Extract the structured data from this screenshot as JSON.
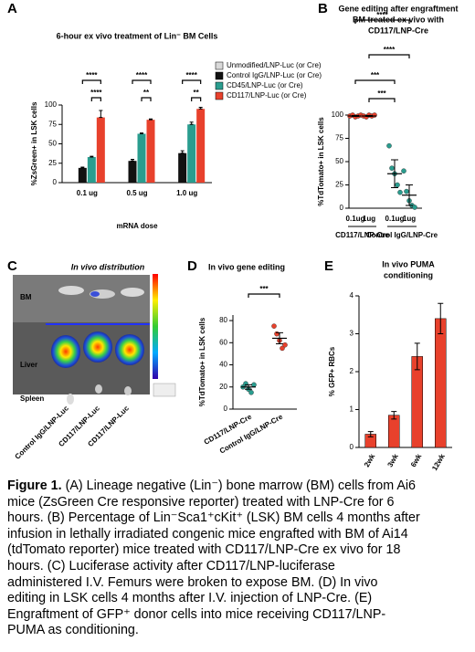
{
  "chart_data": [
    {
      "type": "bar",
      "panel": "A",
      "title": "6-hour ex vivo treatment of Lin⁻ BM Cells",
      "categories": [
        "0.1 ug",
        "0.5 ug",
        "1.0 ug"
      ],
      "series": [
        {
          "name": "Unmodified/LNP-Luc (or Cre)",
          "color": "#d9d9d9",
          "values": [
            0,
            0,
            0
          ],
          "errors": [
            0,
            0,
            0
          ]
        },
        {
          "name": "Control IgG/LNP-Luc (or Cre)",
          "color": "#111111",
          "values": [
            19,
            28,
            38
          ],
          "errors": [
            1,
            2,
            3
          ]
        },
        {
          "name": "CD45/LNP-Luc (or Cre)",
          "color": "#2a9d8f",
          "values": [
            33,
            63,
            75
          ],
          "errors": [
            1,
            1,
            3
          ]
        },
        {
          "name": "CD117/LNP-Luc (or Cre)",
          "color": "#e8412c",
          "values": [
            84,
            81,
            95
          ],
          "errors": [
            9,
            1,
            2
          ]
        }
      ],
      "ylabel": "%ZsGreen+ in LSK cells",
      "xlabel": "mRNA dose",
      "ylim": [
        0,
        100
      ],
      "yticks": [
        0,
        25,
        50,
        75,
        100
      ],
      "legend": "upper right",
      "significance": [
        "****",
        "****",
        "****",
        "**",
        "****",
        "**"
      ]
    },
    {
      "type": "dot",
      "panel": "B",
      "title": [
        "Gene editing after engraftment",
        "BM treated ex vivo with",
        "CD117/LNP-Cre"
      ],
      "categories": [
        "0.1ug",
        "1ug",
        "0.1ug",
        "1ug"
      ],
      "groups": [
        "CD117/LNP-Cre",
        "Control IgG/LNP-Cre"
      ],
      "values": [
        [
          99,
          100,
          98,
          99,
          100
        ],
        [
          99,
          98,
          100,
          99,
          100
        ],
        [
          67,
          43,
          37,
          25,
          17
        ],
        [
          40,
          18,
          8,
          3,
          1
        ]
      ],
      "means": [
        99,
        99,
        37,
        14
      ],
      "errors": [
        0.5,
        0.5,
        15,
        11
      ],
      "colors": [
        "#e8412c",
        "#e8412c",
        "#2a9d8f",
        "#2a9d8f"
      ],
      "ylabel": "%TdTomato+ in LSK cells",
      "ylim": [
        0,
        100
      ],
      "yticks": [
        0,
        25,
        50,
        75,
        100
      ],
      "significance": [
        "****",
        "****",
        "***",
        "***"
      ]
    },
    {
      "type": "dot",
      "panel": "D",
      "title": "In vivo gene editing",
      "categories": [
        "CD117/LNP-Cre",
        "Control IgG/LNP-Cre"
      ],
      "values": [
        [
          20,
          23,
          18,
          15,
          22
        ],
        [
          75,
          68,
          62,
          55,
          58
        ]
      ],
      "means": [
        20,
        64
      ],
      "errors": [
        2,
        5
      ],
      "colors": [
        "#2a9d8f",
        "#e8412c"
      ],
      "ylabel": "%TdTomato+ in LSK cells",
      "ylim": [
        0,
        85
      ],
      "yticks": [
        0,
        20,
        40,
        60,
        80
      ],
      "significance": [
        "***"
      ]
    },
    {
      "type": "bar",
      "panel": "E",
      "title": [
        "In vivo PUMA",
        "conditioning"
      ],
      "categories": [
        "2wk",
        "3wk",
        "6wk",
        "12wk"
      ],
      "values": [
        0.35,
        0.85,
        2.4,
        3.4
      ],
      "errors": [
        0.07,
        0.1,
        0.35,
        0.4
      ],
      "color": "#e8412c",
      "ylabel": "% GFP+ RBCs",
      "ylim": [
        0,
        4
      ],
      "yticks": [
        0,
        1,
        2,
        3,
        4
      ]
    }
  ],
  "panel_c": {
    "panel": "C",
    "title": "In vivo distribution",
    "rows": [
      "BM",
      "Liver",
      "Spleen"
    ],
    "columns": [
      "Control IgG/LNP-Luc",
      "CD117/LNP-Luc",
      "CD117/LNP-Luc"
    ]
  },
  "caption": {
    "label": "Figure 1.",
    "lines": [
      "(A) Lineage negative (Lin⁻) bone marrow (BM) cells from Ai6",
      "mice (ZsGreen Cre responsive reporter) treated with LNP-Cre for 6",
      "hours. (B) Percentage of Lin⁻Sca1⁺cKit⁺ (LSK) BM cells 4 months after",
      "infusion in lethally irradiated congenic mice engrafted with BM of Ai14",
      "(tdTomato reporter) mice treated with CD117/LNP-Cre ex vivo for 18",
      "hours. (C) Luciferase activity after CD117/LNP-luciferase",
      "administered I.V. Femurs were broken to expose BM. (D) In vivo",
      "editing in LSK cells 4 months after I.V. injection of LNP-Cre. (E)",
      "Engraftment of GFP⁺ donor cells into mice receiving CD117/LNP-",
      "PUMA as conditioning."
    ]
  }
}
